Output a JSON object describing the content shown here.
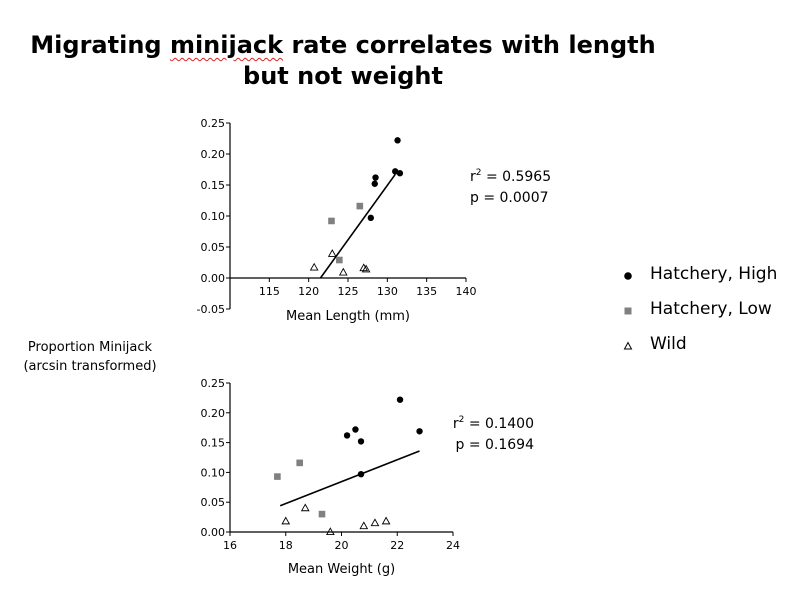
{
  "title": {
    "pre": "Migrating ",
    "wavy": "minijack",
    "post": " rate correlates with length",
    "line2": "but not weight"
  },
  "shared_ylabel": {
    "line1": "Proportion Minijack",
    "line2": "(arcsin transformed)"
  },
  "legend": [
    {
      "label": "Hatchery, High",
      "marker": "circle",
      "color": "#000000"
    },
    {
      "label": "Hatchery, Low",
      "marker": "square",
      "color": "#808080"
    },
    {
      "label": "Wild",
      "marker": "triangle-open",
      "color": "#000000"
    }
  ],
  "chart_data": [
    {
      "type": "scatter",
      "xlabel": "Mean Length (mm)",
      "ylabel": "",
      "xlim": [
        110,
        140
      ],
      "ylim": [
        -0.05,
        0.25
      ],
      "xticks": [
        115,
        120,
        125,
        130,
        135,
        140
      ],
      "yticks": [
        -0.05,
        0.0,
        0.05,
        0.1,
        0.15,
        0.2,
        0.25
      ],
      "ytick_labels": [
        "-0.05",
        "0.00",
        "0.05",
        "0.10",
        "0.15",
        "0.20",
        "0.25"
      ],
      "axis_crossing_y": 0,
      "grid": false,
      "series": [
        {
          "name": "Hatchery, High",
          "marker": "circle",
          "color": "#000000",
          "points": [
            [
              131.3,
              0.222
            ],
            [
              131.0,
              0.172
            ],
            [
              131.6,
              0.169
            ],
            [
              128.5,
              0.162
            ],
            [
              128.4,
              0.152
            ],
            [
              127.9,
              0.097
            ]
          ]
        },
        {
          "name": "Hatchery, Low",
          "marker": "square",
          "color": "#808080",
          "points": [
            [
              122.9,
              0.092
            ],
            [
              126.5,
              0.116
            ],
            [
              123.9,
              0.029
            ]
          ]
        },
        {
          "name": "Wild",
          "marker": "triangle-open",
          "color": "#000000",
          "points": [
            [
              120.7,
              0.017
            ],
            [
              123.0,
              0.039
            ],
            [
              124.4,
              0.009
            ],
            [
              127.0,
              0.016
            ],
            [
              127.3,
              0.014
            ]
          ]
        }
      ],
      "fit_line": {
        "x": [
          121.5,
          131.0
        ],
        "y": [
          0.0,
          0.167
        ]
      },
      "annotation": {
        "r2_label": "r",
        "r2_sup": "2",
        "r2_value": " = 0.5965",
        "p_text": "p  = 0.0007"
      }
    },
    {
      "type": "scatter",
      "xlabel": "Mean Weight (g)",
      "ylabel": "",
      "xlim": [
        16,
        24
      ],
      "ylim": [
        0.0,
        0.25
      ],
      "xticks": [
        16,
        18,
        20,
        22,
        24
      ],
      "yticks": [
        0.0,
        0.05,
        0.1,
        0.15,
        0.2,
        0.25
      ],
      "ytick_labels": [
        "0.00",
        "0.05",
        "0.10",
        "0.15",
        "0.20",
        "0.25"
      ],
      "axis_crossing_y": 0,
      "grid": false,
      "series": [
        {
          "name": "Hatchery, High",
          "marker": "circle",
          "color": "#000000",
          "points": [
            [
              22.1,
              0.222
            ],
            [
              22.8,
              0.169
            ],
            [
              20.5,
              0.172
            ],
            [
              20.2,
              0.162
            ],
            [
              20.7,
              0.152
            ],
            [
              20.7,
              0.097
            ]
          ]
        },
        {
          "name": "Hatchery, Low",
          "marker": "square",
          "color": "#808080",
          "points": [
            [
              17.7,
              0.093
            ],
            [
              18.5,
              0.116
            ],
            [
              19.3,
              0.03
            ]
          ]
        },
        {
          "name": "Wild",
          "marker": "triangle-open",
          "color": "#000000",
          "points": [
            [
              18.0,
              0.018
            ],
            [
              18.7,
              0.04
            ],
            [
              19.6,
              0.0
            ],
            [
              20.8,
              0.01
            ],
            [
              21.2,
              0.015
            ],
            [
              21.6,
              0.018
            ]
          ]
        }
      ],
      "fit_line": {
        "x": [
          17.8,
          22.8
        ],
        "y": [
          0.044,
          0.136
        ]
      },
      "annotation": {
        "r2_label": "r",
        "r2_sup": "2",
        "r2_value": " = 0.1400",
        "p_text": "p = 0.1694"
      }
    }
  ]
}
